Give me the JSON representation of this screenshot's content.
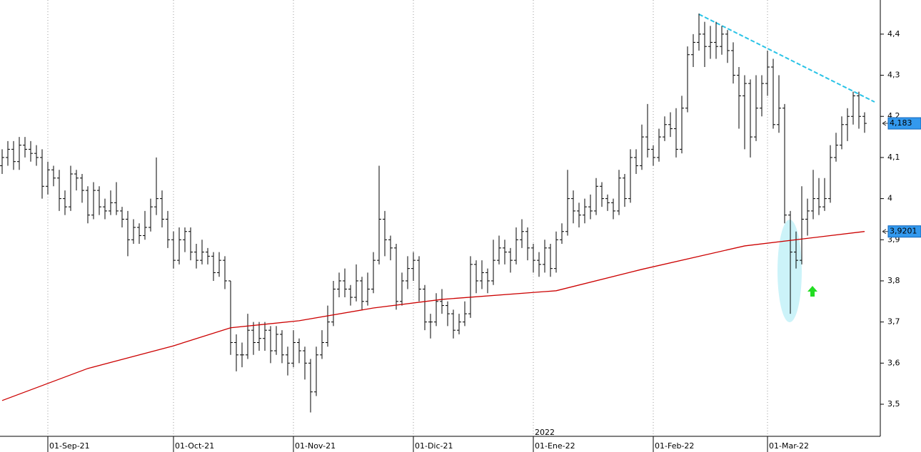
{
  "chart_data": {
    "type": "ohlc",
    "color": "#000000",
    "categories": [
      null,
      null,
      null,
      null,
      null,
      null,
      null,
      null,
      "01-Sep-21",
      null,
      null,
      null,
      null,
      null,
      null,
      null,
      null,
      null,
      null,
      null,
      null,
      null,
      null,
      null,
      null,
      null,
      null,
      null,
      null,
      null,
      "01-Oct-21",
      null,
      null,
      null,
      null,
      null,
      null,
      null,
      null,
      null,
      null,
      null,
      null,
      null,
      null,
      null,
      null,
      null,
      null,
      null,
      null,
      "01-Nov-21",
      null,
      null,
      null,
      null,
      null,
      null,
      null,
      null,
      null,
      null,
      null,
      null,
      null,
      null,
      null,
      null,
      null,
      null,
      null,
      null,
      "01-Dic-21",
      null,
      null,
      null,
      null,
      null,
      null,
      null,
      null,
      null,
      null,
      null,
      null,
      null,
      null,
      null,
      null,
      null,
      null,
      null,
      null,
      "01-Ene-22",
      null,
      null,
      null,
      null,
      null,
      null,
      null,
      null,
      null,
      null,
      null,
      null,
      null,
      null,
      null,
      null,
      null,
      null,
      null,
      null,
      "01-Feb-22",
      null,
      null,
      null,
      null,
      null,
      null,
      null,
      null,
      null,
      null,
      null,
      null,
      null,
      null,
      null,
      null,
      null,
      null,
      null,
      "01-Mar-22",
      null,
      null,
      null,
      null,
      null,
      null,
      null,
      null,
      null,
      null,
      null,
      null,
      null,
      null,
      null,
      null,
      null
    ],
    "open": [
      4.08,
      4.1,
      4.12,
      4.09,
      4.13,
      4.12,
      4.11,
      4.1,
      4.03,
      4.07,
      4.05,
      4.0,
      3.98,
      4.06,
      4.05,
      4.02,
      3.96,
      4.02,
      3.98,
      3.97,
      3.99,
      3.97,
      3.95,
      3.9,
      3.93,
      3.91,
      3.93,
      3.98,
      4.0,
      3.95,
      3.9,
      3.85,
      3.9,
      3.92,
      3.87,
      3.85,
      3.87,
      3.86,
      3.82,
      3.85,
      3.8,
      3.65,
      3.62,
      3.62,
      3.68,
      3.65,
      3.66,
      3.68,
      3.63,
      3.67,
      3.62,
      3.6,
      3.65,
      3.63,
      3.6,
      3.53,
      3.62,
      3.65,
      3.7,
      3.78,
      3.8,
      3.78,
      3.76,
      3.8,
      3.75,
      3.78,
      3.85,
      3.95,
      3.9,
      3.88,
      3.75,
      3.8,
      3.83,
      3.85,
      3.78,
      3.7,
      3.7,
      3.75,
      3.74,
      3.72,
      3.68,
      3.7,
      3.72,
      3.84,
      3.8,
      3.82,
      3.8,
      3.85,
      3.88,
      3.87,
      3.85,
      3.9,
      3.92,
      3.88,
      3.85,
      3.84,
      3.88,
      3.83,
      3.9,
      3.92,
      4.0,
      3.97,
      3.96,
      3.98,
      3.97,
      4.03,
      4.0,
      3.99,
      3.97,
      4.05,
      4.0,
      4.1,
      4.08,
      4.15,
      4.12,
      4.1,
      4.15,
      4.18,
      4.17,
      4.12,
      4.22,
      4.35,
      4.38,
      4.4,
      4.37,
      4.38,
      4.37,
      4.4,
      4.36,
      4.3,
      4.25,
      4.28,
      4.15,
      4.22,
      4.28,
      4.32,
      4.18,
      4.22,
      3.96,
      3.87,
      3.85,
      3.95,
      3.97,
      4.0,
      3.98,
      4.0,
      4.1,
      4.13,
      4.18,
      4.2,
      4.25,
      4.2
    ],
    "high": [
      4.12,
      4.14,
      4.14,
      4.15,
      4.15,
      4.14,
      4.13,
      4.12,
      4.09,
      4.08,
      4.07,
      4.02,
      4.08,
      4.07,
      4.06,
      4.03,
      4.04,
      4.03,
      4.0,
      4.02,
      4.04,
      3.98,
      3.97,
      3.95,
      3.94,
      3.97,
      4.0,
      4.1,
      4.02,
      3.97,
      3.92,
      3.93,
      3.93,
      3.93,
      3.89,
      3.9,
      3.88,
      3.87,
      3.87,
      3.86,
      3.8,
      3.67,
      3.65,
      3.72,
      3.7,
      3.7,
      3.7,
      3.69,
      3.69,
      3.68,
      3.64,
      3.68,
      3.66,
      3.64,
      3.61,
      3.64,
      3.68,
      3.74,
      3.8,
      3.82,
      3.83,
      3.79,
      3.84,
      3.81,
      3.82,
      3.87,
      4.08,
      3.97,
      3.91,
      3.89,
      3.82,
      3.86,
      3.87,
      3.86,
      3.79,
      3.72,
      3.77,
      3.78,
      3.75,
      3.73,
      3.72,
      3.75,
      3.86,
      3.85,
      3.85,
      3.83,
      3.9,
      3.91,
      3.9,
      3.88,
      3.93,
      3.95,
      3.93,
      3.89,
      3.87,
      3.9,
      3.89,
      3.92,
      3.94,
      4.07,
      4.02,
      3.99,
      4.0,
      4.01,
      4.05,
      4.04,
      4.01,
      4.0,
      4.07,
      4.06,
      4.12,
      4.12,
      4.18,
      4.23,
      4.13,
      4.17,
      4.2,
      4.21,
      4.22,
      4.25,
      4.37,
      4.4,
      4.45,
      4.43,
      4.42,
      4.43,
      4.42,
      4.41,
      4.38,
      4.32,
      4.3,
      4.29,
      4.3,
      4.3,
      4.36,
      4.34,
      4.3,
      4.23,
      3.97,
      3.92,
      4.03,
      4.0,
      4.07,
      4.05,
      4.05,
      4.13,
      4.16,
      4.2,
      4.22,
      4.26,
      4.26,
      4.21
    ],
    "low": [
      4.06,
      4.08,
      4.07,
      4.07,
      4.1,
      4.09,
      4.08,
      4.0,
      4.01,
      4.03,
      3.97,
      3.96,
      3.97,
      4.02,
      3.99,
      3.94,
      3.95,
      3.96,
      3.95,
      3.96,
      3.96,
      3.93,
      3.86,
      3.89,
      3.89,
      3.9,
      3.92,
      3.96,
      3.93,
      3.88,
      3.83,
      3.84,
      3.87,
      3.85,
      3.83,
      3.84,
      3.84,
      3.8,
      3.81,
      3.78,
      3.62,
      3.58,
      3.59,
      3.61,
      3.62,
      3.63,
      3.63,
      3.6,
      3.62,
      3.6,
      3.57,
      3.59,
      3.6,
      3.56,
      3.48,
      3.52,
      3.61,
      3.64,
      3.69,
      3.76,
      3.76,
      3.74,
      3.75,
      3.73,
      3.74,
      3.77,
      3.84,
      3.86,
      3.85,
      3.73,
      3.74,
      3.78,
      3.8,
      3.75,
      3.68,
      3.66,
      3.69,
      3.72,
      3.69,
      3.66,
      3.67,
      3.69,
      3.71,
      3.77,
      3.78,
      3.77,
      3.79,
      3.84,
      3.84,
      3.82,
      3.84,
      3.88,
      3.85,
      3.82,
      3.81,
      3.82,
      3.81,
      3.82,
      3.89,
      3.91,
      3.94,
      3.93,
      3.94,
      3.95,
      3.96,
      3.98,
      3.97,
      3.95,
      3.96,
      3.98,
      3.99,
      4.06,
      4.07,
      4.1,
      4.08,
      4.09,
      4.14,
      4.15,
      4.1,
      4.11,
      4.21,
      4.32,
      4.36,
      4.32,
      4.34,
      4.34,
      4.35,
      4.33,
      4.28,
      4.17,
      4.12,
      4.1,
      4.14,
      4.2,
      4.25,
      4.17,
      4.16,
      3.94,
      3.72,
      3.83,
      3.84,
      3.91,
      3.95,
      3.96,
      3.97,
      3.99,
      4.09,
      4.12,
      4.14,
      4.18,
      4.17,
      4.16
    ],
    "close": [
      4.1,
      4.12,
      4.09,
      4.13,
      4.12,
      4.11,
      4.1,
      4.03,
      4.07,
      4.05,
      4.0,
      3.98,
      4.06,
      4.05,
      4.02,
      3.96,
      4.02,
      3.98,
      3.97,
      3.99,
      3.97,
      3.95,
      3.9,
      3.93,
      3.91,
      3.93,
      3.98,
      4.0,
      3.95,
      3.9,
      3.85,
      3.9,
      3.92,
      3.87,
      3.85,
      3.87,
      3.86,
      3.82,
      3.85,
      3.8,
      3.65,
      3.62,
      3.62,
      3.68,
      3.65,
      3.66,
      3.68,
      3.63,
      3.67,
      3.62,
      3.6,
      3.65,
      3.63,
      3.6,
      3.53,
      3.62,
      3.65,
      3.7,
      3.78,
      3.8,
      3.78,
      3.76,
      3.8,
      3.75,
      3.78,
      3.85,
      3.95,
      3.9,
      3.88,
      3.75,
      3.8,
      3.83,
      3.85,
      3.78,
      3.7,
      3.7,
      3.75,
      3.74,
      3.72,
      3.68,
      3.7,
      3.72,
      3.84,
      3.8,
      3.82,
      3.8,
      3.85,
      3.88,
      3.87,
      3.85,
      3.9,
      3.92,
      3.88,
      3.85,
      3.84,
      3.88,
      3.83,
      3.9,
      3.92,
      4.0,
      3.97,
      3.96,
      3.98,
      3.97,
      4.03,
      4.0,
      3.99,
      3.97,
      4.05,
      4.0,
      4.1,
      4.08,
      4.15,
      4.12,
      4.1,
      4.15,
      4.18,
      4.17,
      4.12,
      4.22,
      4.35,
      4.38,
      4.4,
      4.37,
      4.38,
      4.37,
      4.4,
      4.36,
      4.3,
      4.25,
      4.28,
      4.15,
      4.22,
      4.28,
      4.32,
      4.18,
      4.22,
      3.96,
      3.87,
      3.85,
      3.95,
      3.97,
      4.0,
      3.98,
      4.0,
      4.1,
      4.13,
      4.18,
      4.2,
      4.25,
      4.2,
      4.183
    ],
    "overlay": {
      "color": "#cc0000",
      "x": [
        0,
        15,
        30,
        40,
        52,
        65,
        77,
        97,
        112,
        130,
        151
      ],
      "values": [
        3.509,
        3.587,
        3.642,
        3.686,
        3.703,
        3.734,
        3.755,
        3.776,
        3.828,
        3.885,
        3.9201
      ]
    },
    "last_labels": [
      {
        "value": 4.183,
        "label": "4,183"
      },
      {
        "value": 3.9201,
        "label": "3,9201"
      }
    ],
    "year_label": "2022",
    "ylim": [
      3.422,
      4.483
    ],
    "yticks": [
      {
        "value": 3.5,
        "label": "3,5"
      },
      {
        "value": 3.6,
        "label": "3,6"
      },
      {
        "value": 3.7,
        "label": "3,7"
      },
      {
        "value": 3.8,
        "label": "3,8"
      },
      {
        "value": 3.9,
        "label": "3,9"
      },
      {
        "value": 4,
        "label": "4"
      },
      {
        "value": 4.1,
        "label": "4,1"
      },
      {
        "value": 4.2,
        "label": "4,2"
      },
      {
        "value": 4.3,
        "label": "4,3"
      },
      {
        "value": 4.4,
        "label": "4,4"
      }
    ],
    "grid": true
  }
}
